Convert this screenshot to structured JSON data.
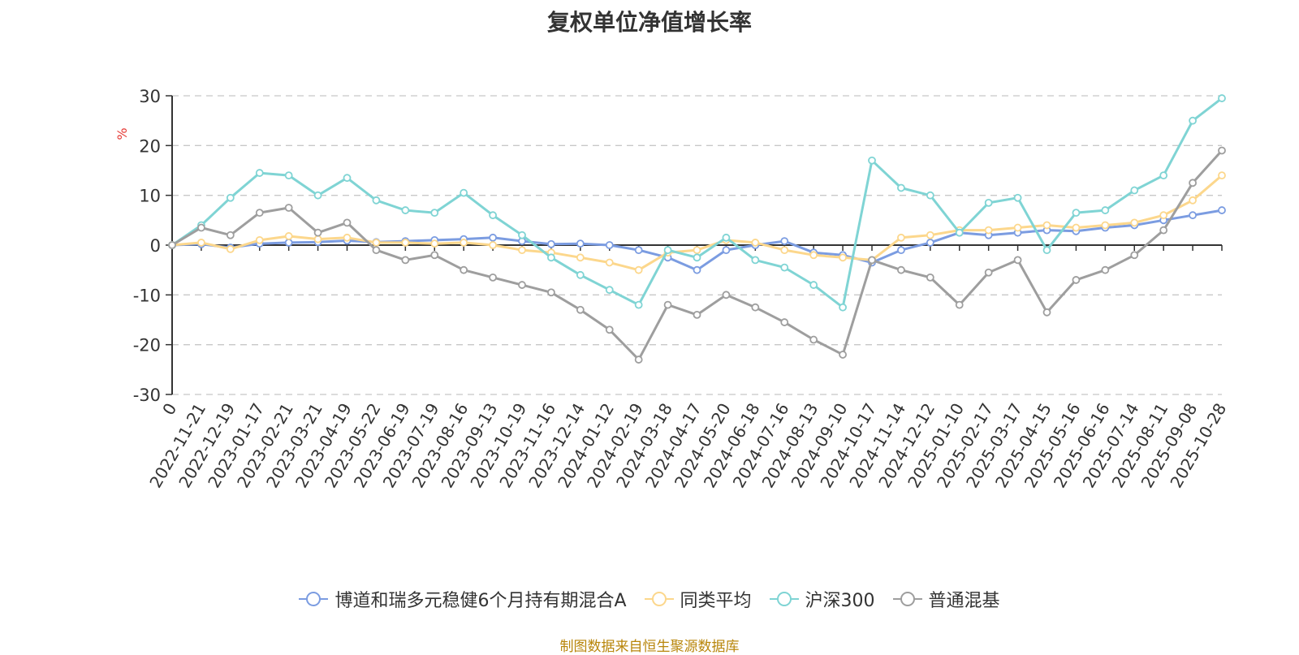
{
  "chart_data": {
    "type": "line",
    "title": "复权单位净值增长率",
    "ylabel": "%",
    "ylim": [
      -30,
      30
    ],
    "yticks": [
      30,
      20,
      10,
      0,
      -10,
      -20,
      -30
    ],
    "grid": true,
    "legend_position": "bottom",
    "x_ticks": [
      "0",
      "2022-11-21",
      "2022-12-19",
      "2023-01-17",
      "2023-02-21",
      "2023-03-21",
      "2023-04-19",
      "2023-05-22",
      "2023-06-19",
      "2023-07-19",
      "2023-08-16",
      "2023-09-13",
      "2023-10-19",
      "2023-11-16",
      "2023-12-14",
      "2024-01-12",
      "2024-02-19",
      "2024-03-18",
      "2024-04-17",
      "2024-05-20",
      "2024-06-18",
      "2024-07-16",
      "2024-08-13",
      "2024-09-10",
      "2024-10-17",
      "2024-11-14",
      "2024-12-12",
      "2025-01-10",
      "2025-02-17",
      "2025-03-17",
      "2025-04-15",
      "2025-05-16",
      "2025-06-16",
      "2025-07-14",
      "2025-08-11",
      "2025-09-08",
      "2025-10-28"
    ],
    "series": [
      {
        "name": "博道和瑞多元稳健6个月持有期混合A",
        "color": "#7b9ce1",
        "values": [
          0,
          0.2,
          -0.5,
          0.3,
          0.5,
          0.6,
          0.9,
          0.6,
          0.8,
          1.0,
          1.2,
          1.5,
          0.8,
          0.2,
          0.3,
          0,
          -1.0,
          -2.5,
          -5.0,
          -1.0,
          0,
          0.8,
          -1.5,
          -2.0,
          -3.5,
          -1.0,
          0.5,
          2.5,
          2.0,
          2.5,
          3.0,
          2.8,
          3.5,
          4.0,
          5.0,
          6.0,
          7.0
        ]
      },
      {
        "name": "同类平均",
        "color": "#fcd78c",
        "values": [
          0,
          0.5,
          -0.8,
          1.0,
          1.8,
          1.2,
          1.5,
          0.5,
          0.5,
          0.3,
          0.5,
          0,
          -1.0,
          -1.5,
          -2.5,
          -3.5,
          -5.0,
          -1.5,
          -1.0,
          1.0,
          0.5,
          -1.0,
          -2.0,
          -2.5,
          -3.0,
          1.5,
          2.0,
          3.0,
          3.0,
          3.5,
          4.0,
          3.5,
          4.0,
          4.5,
          6.0,
          9.0,
          14.0
        ]
      },
      {
        "name": "沪深300",
        "color": "#7fd4d4",
        "values": [
          0,
          4.0,
          9.5,
          14.5,
          14.0,
          10.0,
          13.5,
          9.0,
          7.0,
          6.5,
          10.5,
          6.0,
          2.0,
          -2.5,
          -6.0,
          -9.0,
          -12.0,
          -1.0,
          -2.5,
          1.5,
          -3.0,
          -4.5,
          -8.0,
          -12.5,
          17.0,
          11.5,
          10.0,
          2.5,
          8.5,
          9.5,
          -1.0,
          6.5,
          7.0,
          11.0,
          14.0,
          25.0,
          29.5
        ]
      },
      {
        "name": "普通混基",
        "color": "#9e9e9e",
        "values": [
          0,
          3.5,
          2.0,
          6.5,
          7.5,
          2.5,
          4.5,
          -1.0,
          -3.0,
          -2.0,
          -5.0,
          -6.5,
          -8.0,
          -9.5,
          -13.0,
          -17.0,
          -23.0,
          -12.0,
          -14.0,
          -10.0,
          -12.5,
          -15.5,
          -19.0,
          -22.0,
          -3.0,
          -5.0,
          -6.5,
          -12.0,
          -5.5,
          -3.0,
          -13.5,
          -7.0,
          -5.0,
          -2.0,
          3.0,
          12.5,
          19.0
        ]
      }
    ]
  },
  "legend": {
    "items": [
      "博道和瑞多元稳健6个月持有期混合A",
      "同类平均",
      "沪深300",
      "普通混基"
    ]
  },
  "source_text": "制图数据来自恒生聚源数据库"
}
